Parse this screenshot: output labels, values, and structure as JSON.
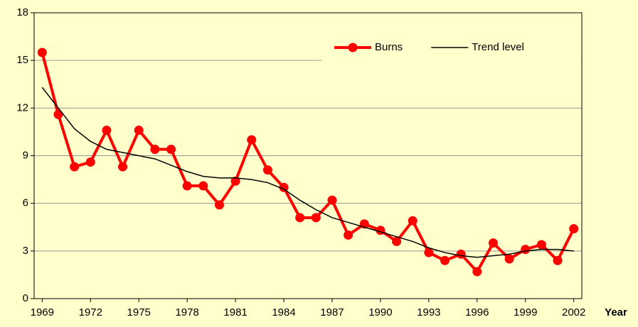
{
  "chart_data": {
    "type": "line",
    "x": [
      1969,
      1970,
      1971,
      1972,
      1973,
      1974,
      1975,
      1976,
      1977,
      1978,
      1979,
      1980,
      1981,
      1982,
      1983,
      1984,
      1985,
      1986,
      1987,
      1988,
      1989,
      1990,
      1991,
      1992,
      1993,
      1994,
      1995,
      1996,
      1997,
      1998,
      1999,
      2000,
      2001,
      2002
    ],
    "series": [
      {
        "name": "Burns",
        "color": "#ff0000",
        "marker": true,
        "values": [
          15.5,
          11.6,
          8.3,
          8.6,
          10.6,
          8.3,
          10.6,
          9.4,
          9.4,
          7.1,
          7.1,
          5.9,
          7.4,
          10.0,
          8.1,
          7.0,
          5.1,
          5.1,
          6.2,
          4.0,
          4.7,
          4.3,
          3.6,
          4.9,
          2.9,
          2.4,
          2.8,
          1.7,
          3.5,
          2.5,
          3.1,
          3.4,
          2.4,
          4.4
        ]
      },
      {
        "name": "Trend level",
        "color": "#000000",
        "marker": false,
        "values": [
          13.3,
          12.0,
          10.7,
          9.9,
          9.4,
          9.2,
          9.0,
          8.8,
          8.4,
          8.0,
          7.7,
          7.6,
          7.6,
          7.5,
          7.3,
          6.9,
          6.2,
          5.6,
          5.1,
          4.8,
          4.5,
          4.2,
          3.9,
          3.6,
          3.2,
          2.9,
          2.7,
          2.6,
          2.7,
          2.8,
          3.0,
          3.1,
          3.1,
          3.0
        ]
      }
    ],
    "xlabel": "Year",
    "xlim": [
      1968.5,
      2002.5
    ],
    "xticks": [
      1969,
      1972,
      1975,
      1978,
      1981,
      1984,
      1987,
      1990,
      1993,
      1996,
      1999,
      2002
    ],
    "ylim": [
      0,
      18
    ],
    "yticks": [
      0,
      3,
      6,
      9,
      12,
      15,
      18
    ],
    "grid": true,
    "legend": "top-right"
  }
}
